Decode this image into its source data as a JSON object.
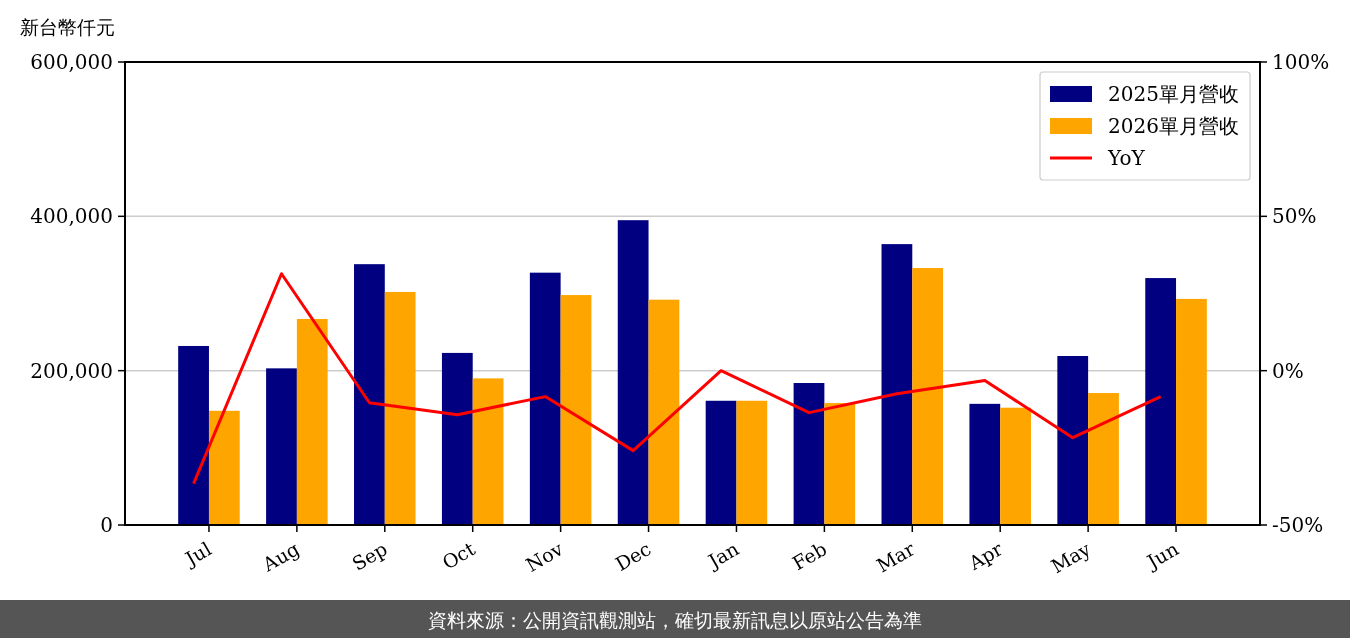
{
  "chart_data": {
    "type": "bar",
    "ylabel": "新台幣仟元",
    "categories": [
      "Jul",
      "Aug",
      "Sep",
      "Oct",
      "Nov",
      "Dec",
      "Jan",
      "Feb",
      "Mar",
      "Apr",
      "May",
      "Jun"
    ],
    "series": [
      {
        "name": "2025單月營收",
        "color": "#000080",
        "values": [
          232000,
          203000,
          338000,
          223000,
          327000,
          395000,
          161000,
          184000,
          364000,
          157000,
          219000,
          320000
        ]
      },
      {
        "name": "2026單月營收",
        "color": "#ffa500",
        "values": [
          148000,
          267000,
          302000,
          190000,
          298000,
          292000,
          161000,
          158000,
          333000,
          152000,
          171000,
          293000
        ]
      },
      {
        "name": "YoY",
        "type": "line",
        "axis": "y2",
        "color": "#ff0000",
        "values": [
          -36.6,
          31.4,
          -10.4,
          -14.3,
          -8.4,
          -25.9,
          0,
          -13.6,
          -7.5,
          -3.2,
          -21.7,
          -8.4
        ]
      }
    ],
    "ylim": [
      0,
      600000
    ],
    "yticks": [
      {
        "value": 0,
        "label": "0"
      },
      {
        "value": 200000,
        "label": "200,000"
      },
      {
        "value": 400000,
        "label": "400,000"
      },
      {
        "value": 600000,
        "label": "600,000"
      }
    ],
    "y2lim": [
      -50,
      100
    ],
    "y2ticks": [
      {
        "value": -50,
        "label": "-50%"
      },
      {
        "value": 0,
        "label": "0%"
      },
      {
        "value": 50,
        "label": "50%"
      },
      {
        "value": 100,
        "label": "100%"
      }
    ],
    "grid": "y",
    "legend": "top right",
    "annotations": [
      "資料來源：公開資訊觀測站，確切最新訊息以原站公告為準"
    ]
  }
}
